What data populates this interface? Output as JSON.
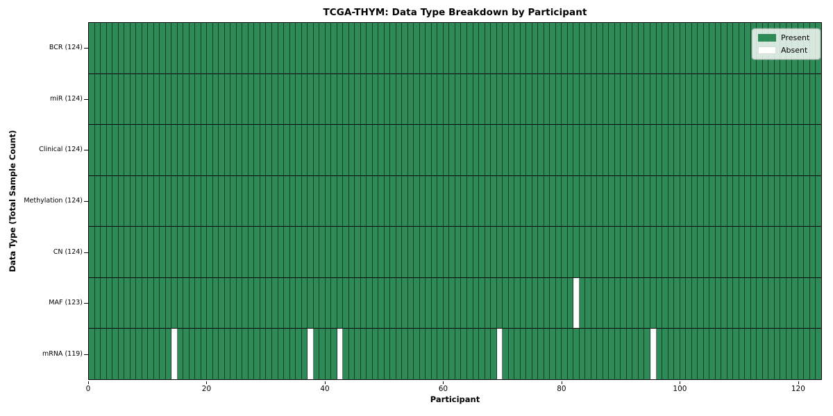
{
  "title": "TCGA-THYM: Data Type Breakdown by Participant",
  "axes": {
    "xlabel": "Participant",
    "ylabel": "Data Type (Total Sample Count)"
  },
  "legend": {
    "position": "upper right",
    "items": [
      {
        "name": "present",
        "label": "Present",
        "color": "#2e8b57"
      },
      {
        "name": "absent",
        "label": "Absent",
        "color": "#ffffff"
      }
    ]
  },
  "chart_data": {
    "type": "heatmap",
    "title": "TCGA-THYM: Data Type Breakdown by Participant",
    "xlabel": "Participant",
    "ylabel": "Data Type (Total Sample Count)",
    "n_participants": 124,
    "xlim": [
      0,
      124
    ],
    "x_ticks": [
      0,
      20,
      40,
      60,
      80,
      100,
      120
    ],
    "grid": true,
    "legend_position": "upper right",
    "colors": {
      "present": "#2e8b57",
      "absent": "#ffffff",
      "cell_grid": "rgba(0,0,0,0.55)",
      "row_divider": "#0a0a0a",
      "border": "#000000"
    },
    "rows": [
      {
        "label": "BCR (124)",
        "data_type": "BCR",
        "present_count": 124,
        "absent_participants": []
      },
      {
        "label": "miR (124)",
        "data_type": "miR",
        "present_count": 124,
        "absent_participants": []
      },
      {
        "label": "Clinical (124)",
        "data_type": "Clinical",
        "present_count": 124,
        "absent_participants": []
      },
      {
        "label": "Methylation (124)",
        "data_type": "Methylation",
        "present_count": 124,
        "absent_participants": []
      },
      {
        "label": "CN (124)",
        "data_type": "CN",
        "present_count": 124,
        "absent_participants": []
      },
      {
        "label": "MAF (123)",
        "data_type": "MAF",
        "present_count": 123,
        "absent_participants": [
          82
        ]
      },
      {
        "label": "mRNA (119)",
        "data_type": "mRNA",
        "present_count": 119,
        "absent_participants": [
          14,
          37,
          42,
          69,
          95
        ]
      }
    ]
  }
}
